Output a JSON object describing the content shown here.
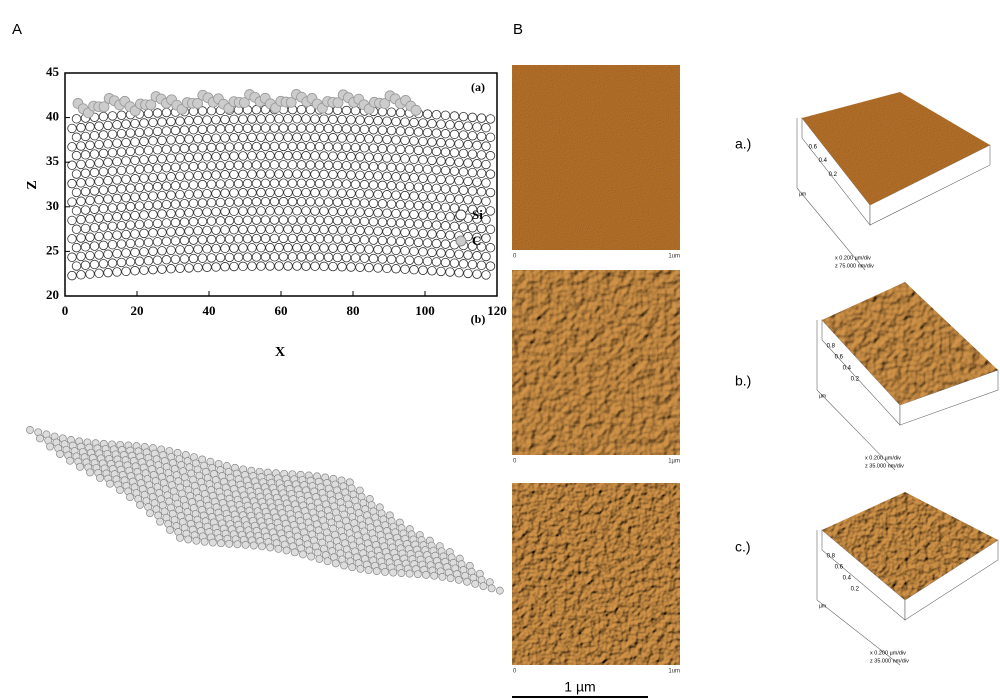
{
  "panel_labels": [
    "A",
    "B"
  ],
  "plot": {
    "subpanel": "(a)",
    "x_label": "X",
    "y_label": "Z",
    "xlim": [
      0,
      120
    ],
    "ylim": [
      20,
      45
    ],
    "xticks": [
      0,
      20,
      40,
      60,
      80,
      100,
      120
    ],
    "yticks": [
      20,
      25,
      30,
      35,
      40,
      45
    ],
    "legend": [
      "Si",
      "C"
    ]
  },
  "subpanel_b": "(b)",
  "afm_2d": [
    {
      "start": "0",
      "end": "1um"
    },
    {
      "start": "0",
      "end": "1µm"
    },
    {
      "start": "0",
      "end": "1um"
    }
  ],
  "scale_bar": "1 µm",
  "afm_3d": [
    {
      "label": "a.)",
      "ticks": [
        "0.6",
        "0.4",
        "0.2"
      ],
      "unit": "µm",
      "x_scale": "x 0.200 µm/div",
      "z_scale": "z 75.000 nm/div"
    },
    {
      "label": "b.)",
      "ticks": [
        "0.8",
        "0.6",
        "0.4",
        "0.2"
      ],
      "unit": "µm",
      "x_scale": "x 0.200 µm/div",
      "z_scale": "z 35.000 nm/div"
    },
    {
      "label": "c.)",
      "ticks": [
        "0.8",
        "0.6",
        "0.4",
        "0.2"
      ],
      "unit": "µm",
      "x_scale": "x 0.200 µm/div",
      "z_scale": "z 35.000 nm/div"
    }
  ]
}
